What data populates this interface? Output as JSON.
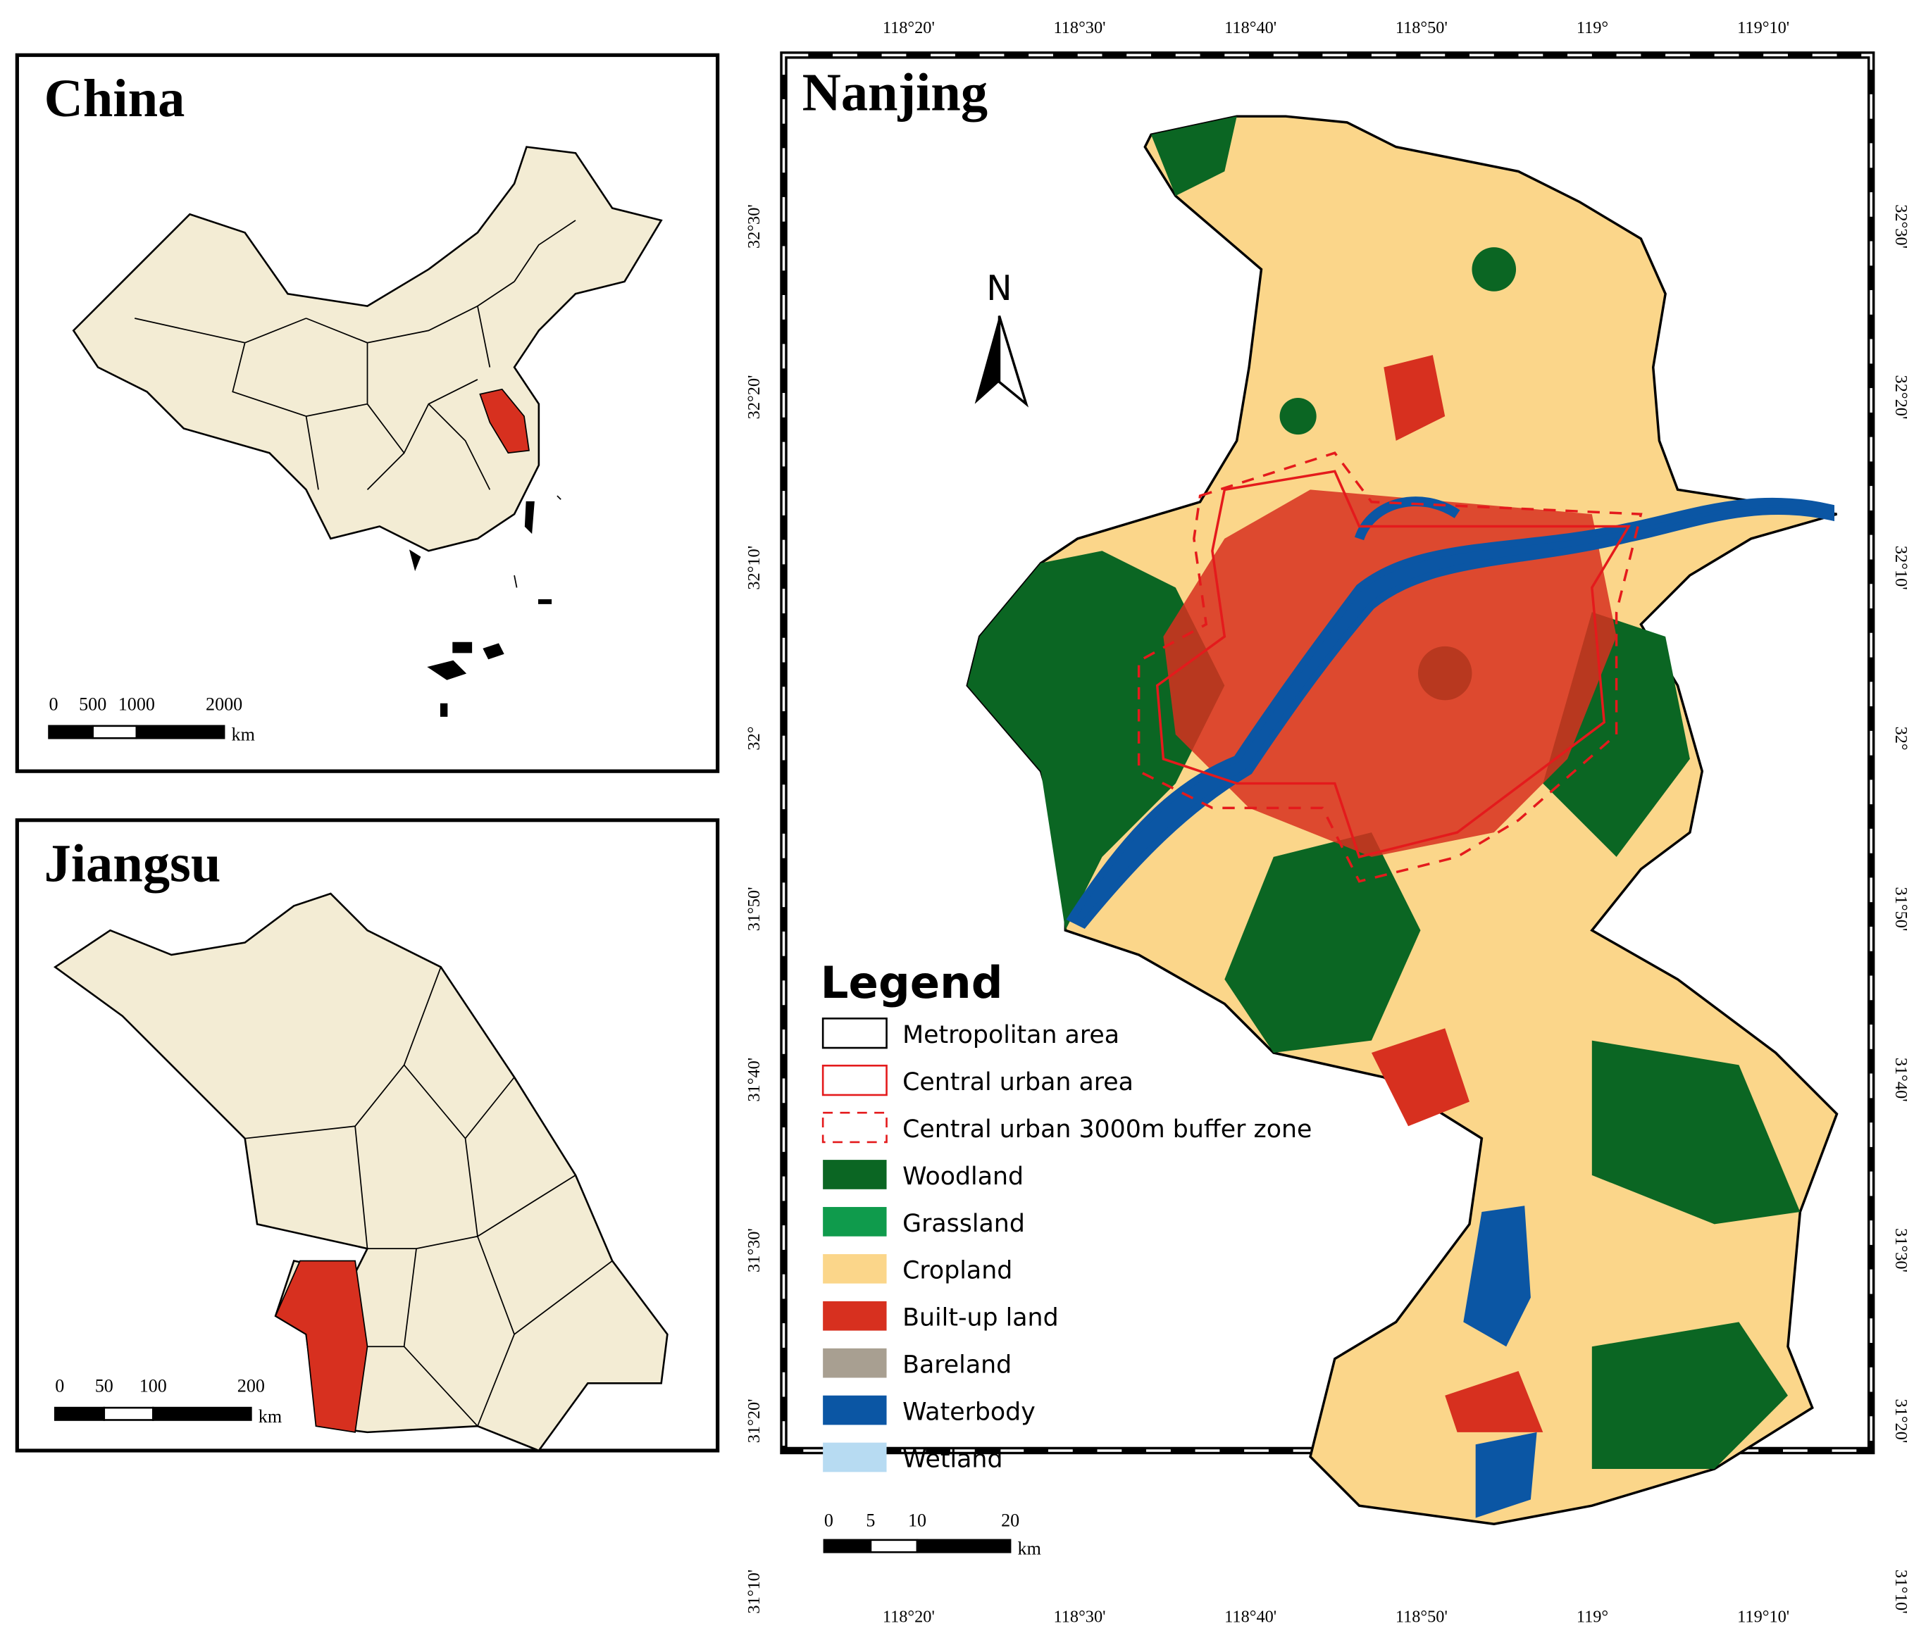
{
  "panels": [
    {
      "title": "China",
      "scale": {
        "ticks": [
          0,
          500,
          1000,
          2000
        ],
        "unit": "km"
      }
    },
    {
      "title": "Jiangsu",
      "scale": {
        "ticks": [
          0,
          50,
          100,
          200
        ],
        "unit": "km"
      }
    }
  ],
  "map": {
    "title": "Nanjing",
    "north": "N",
    "longitude_labels": [
      "118°20'",
      "118°30'",
      "118°40'",
      "118°50'",
      "119°",
      "119°10'"
    ],
    "latitude_labels": [
      "32°30'",
      "32°20'",
      "32°10'",
      "32°",
      "31°50'",
      "31°40'",
      "31°30'",
      "31°20'",
      "31°10'"
    ],
    "legend": {
      "title": "Legend",
      "items": [
        {
          "label": "Metropolitan area",
          "symbol": "outline",
          "color": "#000000"
        },
        {
          "label": "Central urban area",
          "symbol": "outline",
          "color": "#e41a1c"
        },
        {
          "label": "Central urban 3000m buffer zone",
          "symbol": "dashed",
          "color": "#e41a1c"
        },
        {
          "label": "Woodland",
          "symbol": "fill",
          "color": "#0b6623"
        },
        {
          "label": "Grassland",
          "symbol": "fill",
          "color": "#0f9b4c"
        },
        {
          "label": "Cropland",
          "symbol": "fill",
          "color": "#fbd68a"
        },
        {
          "label": "Built-up land",
          "symbol": "fill",
          "color": "#d7301f"
        },
        {
          "label": "Bareland",
          "symbol": "fill",
          "color": "#a89f91"
        },
        {
          "label": "Waterbody",
          "symbol": "fill",
          "color": "#0b56a4"
        },
        {
          "label": "Wetland",
          "symbol": "fill",
          "color": "#b7dbf2"
        }
      ]
    },
    "scale": {
      "ticks": [
        0,
        5,
        10,
        20
      ],
      "unit": "km"
    }
  }
}
